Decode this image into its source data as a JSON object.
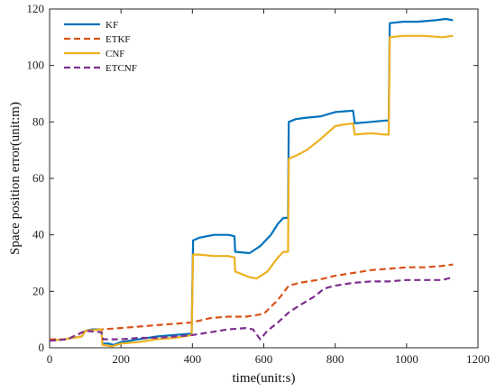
{
  "chart_data": {
    "type": "line",
    "xlabel": "time(unit:s)",
    "ylabel": "Space position error(unit:m)",
    "xlim": [
      0,
      1200
    ],
    "ylim": [
      0,
      120
    ],
    "xticks": [
      0,
      200,
      400,
      600,
      800,
      1000,
      1200
    ],
    "yticks": [
      0,
      20,
      40,
      60,
      80,
      100,
      120
    ],
    "grid": false,
    "legend_position": "top-left",
    "series": [
      {
        "name": "KF",
        "color": "#0072BD",
        "style": "solid",
        "points": [
          [
            0,
            2.5
          ],
          [
            40,
            3
          ],
          [
            90,
            4
          ],
          [
            100,
            6
          ],
          [
            120,
            6.5
          ],
          [
            145,
            6.5
          ],
          [
            148,
            1.5
          ],
          [
            165,
            1.5
          ],
          [
            180,
            1
          ],
          [
            200,
            2
          ],
          [
            250,
            3
          ],
          [
            300,
            4
          ],
          [
            350,
            4.5
          ],
          [
            398,
            5
          ],
          [
            402,
            38
          ],
          [
            420,
            39
          ],
          [
            460,
            40
          ],
          [
            500,
            40
          ],
          [
            518,
            39.5
          ],
          [
            520,
            34
          ],
          [
            560,
            33.5
          ],
          [
            590,
            36
          ],
          [
            620,
            40
          ],
          [
            640,
            44
          ],
          [
            655,
            46
          ],
          [
            668,
            46
          ],
          [
            670,
            80
          ],
          [
            690,
            81
          ],
          [
            720,
            81.5
          ],
          [
            760,
            82
          ],
          [
            800,
            83.5
          ],
          [
            850,
            84
          ],
          [
            855,
            79.5
          ],
          [
            900,
            80
          ],
          [
            940,
            80.5
          ],
          [
            950,
            80.5
          ],
          [
            953,
            115
          ],
          [
            990,
            115.5
          ],
          [
            1030,
            115.5
          ],
          [
            1080,
            116
          ],
          [
            1110,
            116.5
          ],
          [
            1130,
            116
          ]
        ]
      },
      {
        "name": "ETKF",
        "color": "#D95319",
        "style": "dashed",
        "points": [
          [
            0,
            3
          ],
          [
            50,
            3
          ],
          [
            100,
            6
          ],
          [
            145,
            6.5
          ],
          [
            200,
            7
          ],
          [
            250,
            7.5
          ],
          [
            300,
            8
          ],
          [
            350,
            8.5
          ],
          [
            400,
            9
          ],
          [
            450,
            10.5
          ],
          [
            500,
            11
          ],
          [
            550,
            11
          ],
          [
            600,
            12
          ],
          [
            640,
            17
          ],
          [
            670,
            22
          ],
          [
            700,
            23
          ],
          [
            750,
            24
          ],
          [
            800,
            25.5
          ],
          [
            850,
            26.5
          ],
          [
            900,
            27.5
          ],
          [
            950,
            28
          ],
          [
            1000,
            28.5
          ],
          [
            1050,
            28.5
          ],
          [
            1100,
            29
          ],
          [
            1130,
            29.5
          ]
        ]
      },
      {
        "name": "CNF",
        "color": "#EDB120",
        "style": "solid",
        "points": [
          [
            0,
            2.5
          ],
          [
            40,
            3
          ],
          [
            90,
            4
          ],
          [
            100,
            6
          ],
          [
            145,
            6.5
          ],
          [
            148,
            1
          ],
          [
            175,
            0.5
          ],
          [
            200,
            1.5
          ],
          [
            250,
            2
          ],
          [
            300,
            3
          ],
          [
            350,
            3.5
          ],
          [
            398,
            4.5
          ],
          [
            402,
            33
          ],
          [
            420,
            33
          ],
          [
            460,
            32.5
          ],
          [
            500,
            32.5
          ],
          [
            518,
            32
          ],
          [
            520,
            27
          ],
          [
            560,
            25
          ],
          [
            580,
            24.5
          ],
          [
            610,
            27
          ],
          [
            640,
            32
          ],
          [
            655,
            34
          ],
          [
            668,
            34
          ],
          [
            670,
            67
          ],
          [
            690,
            68
          ],
          [
            720,
            70
          ],
          [
            760,
            74
          ],
          [
            800,
            78.5
          ],
          [
            820,
            79
          ],
          [
            850,
            79.5
          ],
          [
            855,
            75.5
          ],
          [
            900,
            76
          ],
          [
            940,
            75.5
          ],
          [
            950,
            75.5
          ],
          [
            953,
            110
          ],
          [
            990,
            110.5
          ],
          [
            1050,
            110.5
          ],
          [
            1100,
            110
          ],
          [
            1130,
            110.5
          ]
        ]
      },
      {
        "name": "ETCNF",
        "color": "#7E2F8E",
        "style": "dashed",
        "points": [
          [
            0,
            2.5
          ],
          [
            50,
            3
          ],
          [
            100,
            6
          ],
          [
            145,
            5.5
          ],
          [
            150,
            3
          ],
          [
            200,
            3
          ],
          [
            250,
            3.5
          ],
          [
            300,
            3.5
          ],
          [
            350,
            4
          ],
          [
            400,
            4.5
          ],
          [
            450,
            5.5
          ],
          [
            500,
            6.5
          ],
          [
            550,
            7
          ],
          [
            570,
            6.5
          ],
          [
            590,
            3
          ],
          [
            610,
            6
          ],
          [
            640,
            9
          ],
          [
            670,
            12.5
          ],
          [
            700,
            15
          ],
          [
            740,
            18
          ],
          [
            770,
            21
          ],
          [
            800,
            22
          ],
          [
            850,
            23
          ],
          [
            900,
            23.5
          ],
          [
            950,
            23.5
          ],
          [
            1000,
            24
          ],
          [
            1050,
            24
          ],
          [
            1100,
            24
          ],
          [
            1130,
            25
          ]
        ]
      }
    ]
  }
}
